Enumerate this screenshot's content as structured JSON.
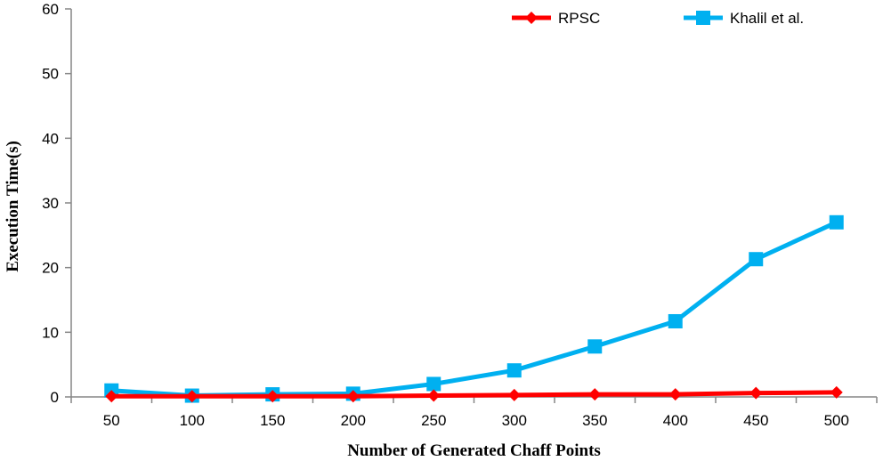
{
  "chart_data": {
    "type": "line",
    "title": "",
    "xlabel": "Number of Generated Chaff Points",
    "ylabel": "Execution Time(s)",
    "categories": [
      "50",
      "100",
      "150",
      "200",
      "250",
      "300",
      "350",
      "400",
      "450",
      "500"
    ],
    "y_ticks": [
      "0",
      "10",
      "20",
      "30",
      "40",
      "50",
      "60"
    ],
    "ylim": [
      0,
      60
    ],
    "grid": false,
    "legend_position": "top-right",
    "series": [
      {
        "name": "RPSC",
        "color": "#ff0000",
        "marker": "diamond",
        "values": [
          0.1,
          0.1,
          0.1,
          0.1,
          0.2,
          0.3,
          0.4,
          0.4,
          0.6,
          0.7
        ]
      },
      {
        "name": "Khalil et al.",
        "color": "#00b0f0",
        "marker": "square",
        "values": [
          1.0,
          0.2,
          0.4,
          0.5,
          2.0,
          4.1,
          7.8,
          11.7,
          21.3,
          27.0
        ]
      }
    ]
  }
}
